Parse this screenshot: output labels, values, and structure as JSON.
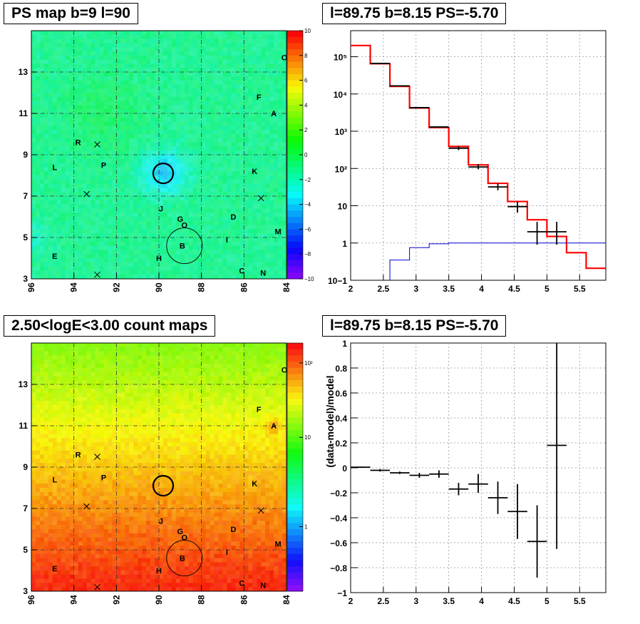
{
  "titles": {
    "ps_map": "PS map b=9 l=90",
    "spectrum": "l=89.75 b=8.15 PS=-5.70",
    "count_map": "2.50<logE<3.00 count maps",
    "residual": "l=89.75 b=8.15 PS=-5.70"
  },
  "chart_data": [
    {
      "id": "ps_map",
      "type": "heatmap",
      "title": "PS map b=9 l=90",
      "x_ticks": [
        "96",
        "94",
        "92",
        "90",
        "88",
        "86",
        "84"
      ],
      "y_ticks": [
        "3",
        "5",
        "7",
        "9",
        "11",
        "13"
      ],
      "xlim": [
        96,
        84
      ],
      "ylim": [
        3,
        15
      ],
      "colorbar_ticks": [
        "10",
        "8",
        "6",
        "4",
        "2",
        "0",
        "−2",
        "−4",
        "−6",
        "−8",
        "−10"
      ],
      "colorbar_range": [
        -10,
        10
      ],
      "grid": true,
      "labels": [
        {
          "text": "F",
          "l": 85.3,
          "b": 11.8
        },
        {
          "text": "A",
          "l": 84.6,
          "b": 11.0
        },
        {
          "text": "R",
          "l": 93.8,
          "b": 9.6
        },
        {
          "text": "L",
          "l": 94.9,
          "b": 8.4
        },
        {
          "text": "P",
          "l": 92.6,
          "b": 8.5
        },
        {
          "text": "K",
          "l": 85.5,
          "b": 8.2
        },
        {
          "text": "J",
          "l": 89.9,
          "b": 6.4
        },
        {
          "text": "G",
          "l": 89.0,
          "b": 5.9
        },
        {
          "text": "O",
          "l": 88.8,
          "b": 5.6
        },
        {
          "text": "D",
          "l": 86.5,
          "b": 6.0
        },
        {
          "text": "M",
          "l": 84.4,
          "b": 5.3
        },
        {
          "text": "I",
          "l": 86.8,
          "b": 4.9
        },
        {
          "text": "B",
          "l": 88.9,
          "b": 4.6
        },
        {
          "text": "E",
          "l": 94.9,
          "b": 4.1
        },
        {
          "text": "H",
          "l": 90.0,
          "b": 4.0
        },
        {
          "text": "C",
          "l": 86.1,
          "b": 3.4
        },
        {
          "text": "N",
          "l": 85.1,
          "b": 3.3
        },
        {
          "text": "O",
          "l": 84.1,
          "b": 13.7
        }
      ],
      "crosses": [
        {
          "l": 92.9,
          "b": 9.5
        },
        {
          "l": 93.4,
          "b": 7.1
        },
        {
          "l": 85.2,
          "b": 6.9
        },
        {
          "l": 92.9,
          "b": 3.2
        }
      ]
    },
    {
      "id": "spectrum",
      "type": "line",
      "title": "l=89.75 b=8.15 PS=-5.70",
      "xlim": [
        2.0,
        5.9
      ],
      "ylim": [
        0.1,
        500000
      ],
      "y_scale": "log",
      "x_ticks": [
        "2",
        "2.5",
        "3",
        "3.5",
        "4",
        "4.5",
        "5",
        "5.5"
      ],
      "y_ticks": [
        "10−1",
        "1",
        "10",
        "10²",
        "10³",
        "10⁴",
        "10⁵"
      ],
      "grid": true,
      "series": [
        {
          "color": "#ff0000",
          "edges": [
            2.0,
            2.3,
            2.6,
            2.9,
            3.2,
            3.5,
            3.8,
            4.1,
            4.4,
            4.7,
            5.0,
            5.3,
            5.6,
            5.9
          ],
          "values": [
            200000,
            65000,
            16000,
            4200,
            1250,
            390,
            125,
            40,
            13,
            4.2,
            1.5,
            0.55,
            0.21
          ]
        },
        {
          "color": "#0000cc",
          "edges": [
            2.6,
            2.9,
            3.2,
            3.5,
            5.9
          ],
          "values": [
            0.35,
            0.75,
            0.95,
            1.0
          ]
        }
      ],
      "points": [
        {
          "x": 2.45,
          "dx": 0.15,
          "y": 66000
        },
        {
          "x": 2.75,
          "dx": 0.15,
          "y": 16500
        },
        {
          "x": 3.05,
          "dx": 0.15,
          "y": 4300
        },
        {
          "x": 3.35,
          "dx": 0.15,
          "y": 1300
        },
        {
          "x": 3.65,
          "dx": 0.15,
          "y": 350,
          "lo": 310,
          "hi": 390
        },
        {
          "x": 3.95,
          "dx": 0.15,
          "y": 110,
          "lo": 95,
          "hi": 130
        },
        {
          "x": 4.25,
          "dx": 0.15,
          "y": 32,
          "lo": 26,
          "hi": 40
        },
        {
          "x": 4.55,
          "dx": 0.15,
          "y": 9.5,
          "lo": 6.5,
          "hi": 13
        },
        {
          "x": 4.85,
          "dx": 0.15,
          "y": 2.0,
          "lo": 0.9,
          "hi": 3.7
        },
        {
          "x": 5.15,
          "dx": 0.15,
          "y": 2.0,
          "lo": 0.9,
          "hi": 3.7
        }
      ]
    },
    {
      "id": "count_map",
      "type": "heatmap",
      "title": "2.50<logE<3.00 count maps",
      "x_ticks": [
        "96",
        "94",
        "92",
        "90",
        "88",
        "86",
        "84"
      ],
      "y_ticks": [
        "3",
        "5",
        "7",
        "9",
        "11",
        "13"
      ],
      "xlim": [
        96,
        84
      ],
      "ylim": [
        3,
        15
      ],
      "colorbar_ticks": [
        "10²",
        "10",
        "1"
      ],
      "color_scale": "log",
      "grid": true,
      "labels": [
        {
          "text": "F",
          "l": 85.3,
          "b": 11.8
        },
        {
          "text": "A",
          "l": 84.6,
          "b": 11.0
        },
        {
          "text": "R",
          "l": 93.8,
          "b": 9.6
        },
        {
          "text": "L",
          "l": 94.9,
          "b": 8.4
        },
        {
          "text": "P",
          "l": 92.6,
          "b": 8.5
        },
        {
          "text": "K",
          "l": 85.5,
          "b": 8.2
        },
        {
          "text": "J",
          "l": 89.9,
          "b": 6.4
        },
        {
          "text": "G",
          "l": 89.0,
          "b": 5.9
        },
        {
          "text": "O",
          "l": 88.8,
          "b": 5.6
        },
        {
          "text": "D",
          "l": 86.5,
          "b": 6.0
        },
        {
          "text": "M",
          "l": 84.4,
          "b": 5.3
        },
        {
          "text": "I",
          "l": 86.8,
          "b": 4.9
        },
        {
          "text": "B",
          "l": 88.9,
          "b": 4.6
        },
        {
          "text": "E",
          "l": 94.9,
          "b": 4.1
        },
        {
          "text": "H",
          "l": 90.0,
          "b": 4.0
        },
        {
          "text": "C",
          "l": 86.1,
          "b": 3.4
        },
        {
          "text": "N",
          "l": 85.1,
          "b": 3.3
        },
        {
          "text": "O",
          "l": 84.1,
          "b": 13.7
        }
      ],
      "crosses": [
        {
          "l": 92.9,
          "b": 9.5
        },
        {
          "l": 93.4,
          "b": 7.1
        },
        {
          "l": 85.2,
          "b": 6.9
        },
        {
          "l": 92.9,
          "b": 3.2
        }
      ]
    },
    {
      "id": "residual",
      "type": "scatter",
      "title": "l=89.75 b=8.15 PS=-5.70",
      "ylabel": "(data-model)/model",
      "xlim": [
        2.0,
        5.9
      ],
      "ylim": [
        -1,
        1
      ],
      "x_ticks": [
        "2",
        "2.5",
        "3",
        "3.5",
        "4",
        "4.5",
        "5",
        "5.5"
      ],
      "y_ticks": [
        "1",
        "0.8",
        "0.6",
        "0.4",
        "0.2",
        "0",
        "−0.2",
        "−0.4",
        "−0.6",
        "−0.8",
        "−1"
      ],
      "grid": true,
      "points": [
        {
          "x": 2.15,
          "dx": 0.15,
          "y": 0.005,
          "lo": 0.0,
          "hi": 0.01
        },
        {
          "x": 2.45,
          "dx": 0.15,
          "y": -0.02,
          "lo": -0.03,
          "hi": -0.01
        },
        {
          "x": 2.75,
          "dx": 0.15,
          "y": -0.04,
          "lo": -0.05,
          "hi": -0.03
        },
        {
          "x": 3.05,
          "dx": 0.15,
          "y": -0.06,
          "lo": -0.08,
          "hi": -0.04
        },
        {
          "x": 3.35,
          "dx": 0.15,
          "y": -0.05,
          "lo": -0.08,
          "hi": -0.02
        },
        {
          "x": 3.65,
          "dx": 0.15,
          "y": -0.17,
          "lo": -0.22,
          "hi": -0.12
        },
        {
          "x": 3.95,
          "dx": 0.15,
          "y": -0.13,
          "lo": -0.2,
          "hi": -0.05
        },
        {
          "x": 4.25,
          "dx": 0.15,
          "y": -0.24,
          "lo": -0.37,
          "hi": -0.11
        },
        {
          "x": 4.55,
          "dx": 0.15,
          "y": -0.35,
          "lo": -0.57,
          "hi": -0.13
        },
        {
          "x": 4.85,
          "dx": 0.15,
          "y": -0.59,
          "lo": -0.88,
          "hi": -0.3
        },
        {
          "x": 5.15,
          "dx": 0.15,
          "y": 0.18,
          "lo": -0.65,
          "hi": 1.0
        }
      ]
    }
  ]
}
